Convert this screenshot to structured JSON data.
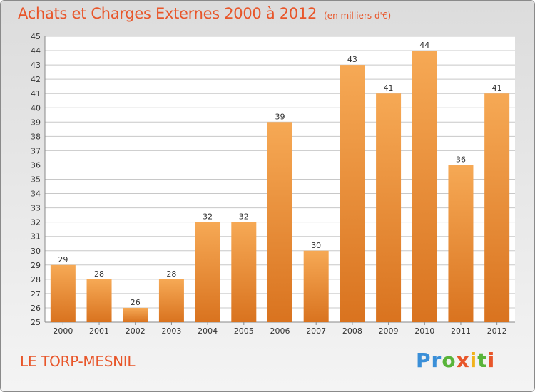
{
  "title": "Achats et Charges Externes 2000 à 2012",
  "subtitle": "(en milliers d'€)",
  "location": "LE TORP-MESNIL",
  "brand": {
    "letters": [
      "P",
      "r",
      "o",
      "x",
      "i",
      "t",
      "i"
    ],
    "colors": [
      "#3a8fd8",
      "#3a8fd8",
      "#59b43a",
      "#e8562a",
      "#f2b21b",
      "#59b43a",
      "#e8562a"
    ]
  },
  "colors": {
    "title": "#e8562a",
    "bar_top": "#f6a955",
    "bar_bottom": "#d9731f",
    "grid": "#c8c8c8"
  },
  "chart_data": {
    "type": "bar",
    "categories": [
      "2000",
      "2001",
      "2002",
      "2003",
      "2004",
      "2005",
      "2006",
      "2007",
      "2008",
      "2009",
      "2010",
      "2011",
      "2012"
    ],
    "values": [
      29,
      28,
      26,
      28,
      32,
      32,
      39,
      30,
      43,
      41,
      44,
      36,
      41
    ],
    "ylim": [
      25,
      45
    ],
    "yticks": [
      25,
      26,
      27,
      28,
      29,
      30,
      31,
      32,
      33,
      34,
      35,
      36,
      37,
      38,
      39,
      40,
      41,
      42,
      43,
      44,
      45
    ],
    "grid": true,
    "data_labels": true
  }
}
